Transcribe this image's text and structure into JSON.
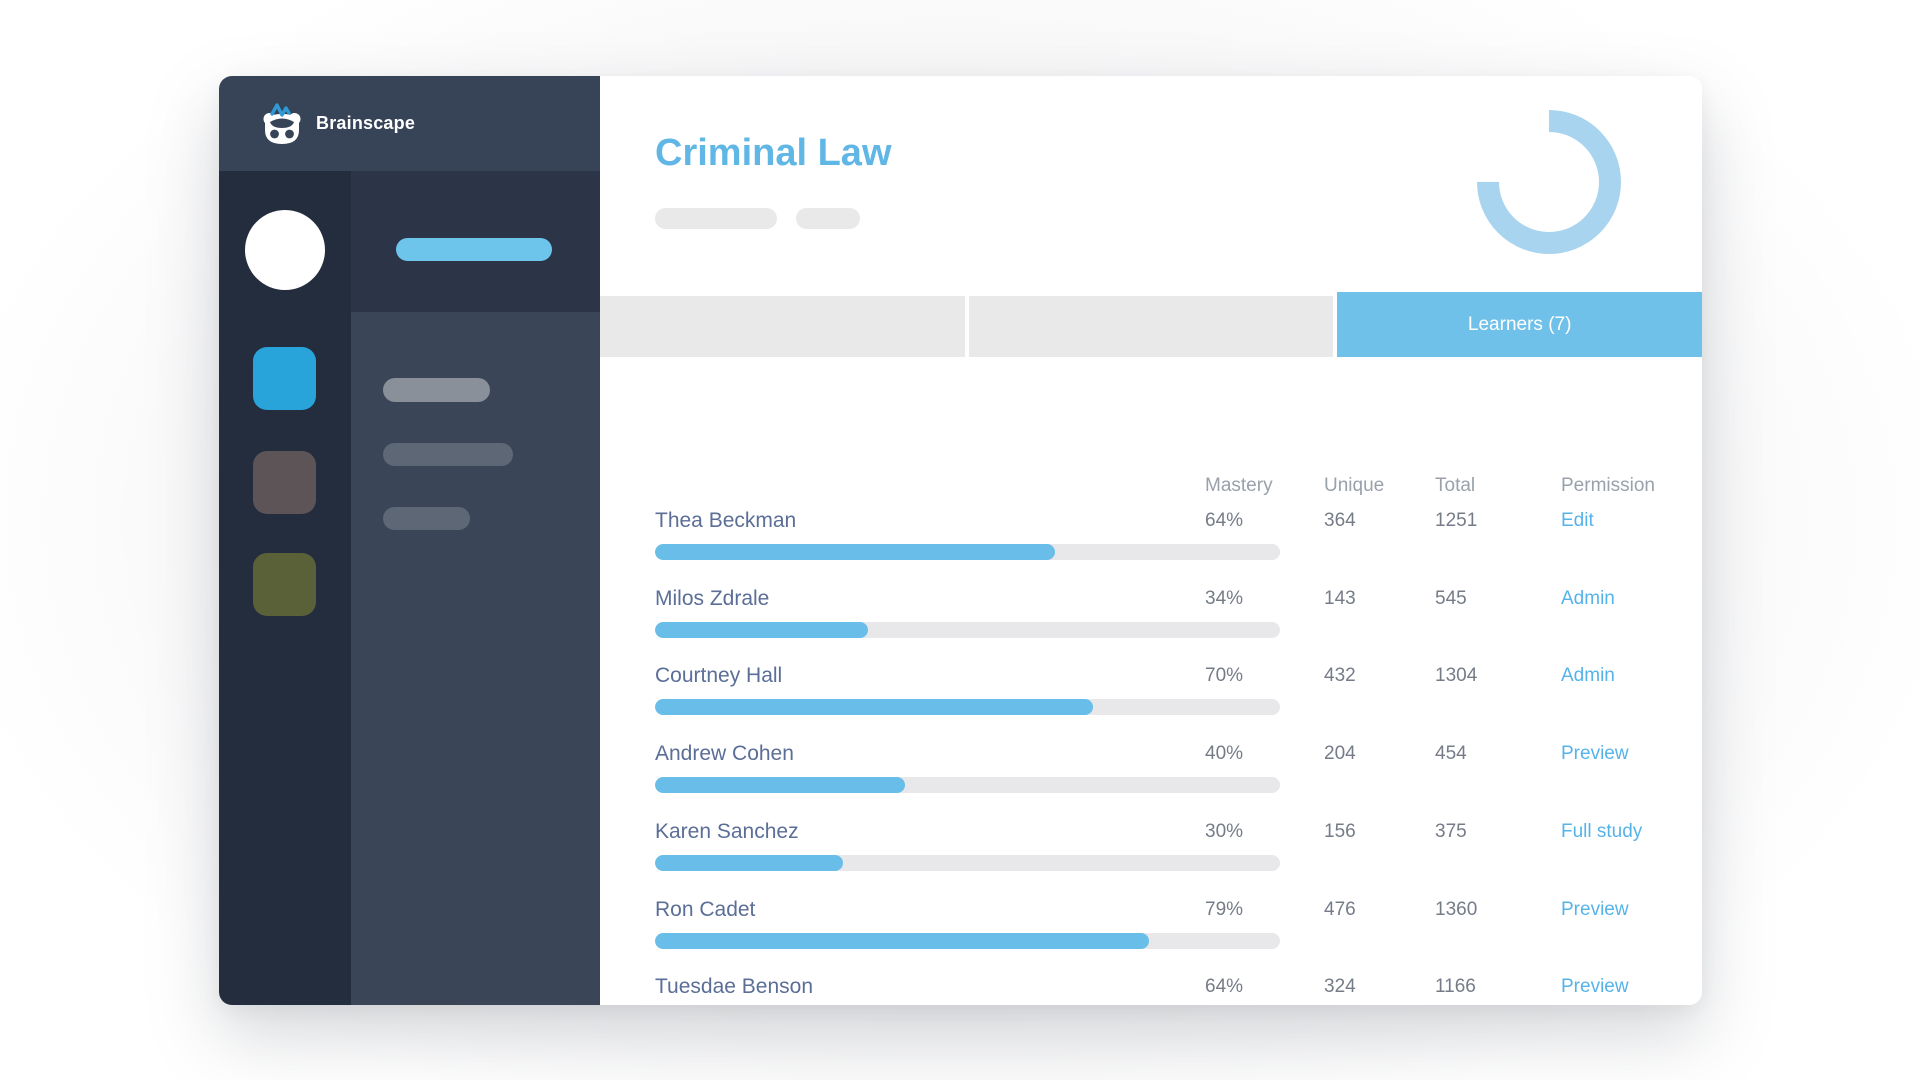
{
  "brand": {
    "name": "Brainscape"
  },
  "colors": {
    "accent_blue": "#6fc1e9",
    "link_blue": "#56b3ea",
    "title_blue": "#60b7e5",
    "progress_blue": "#68bee8",
    "progress_track": "#e8e8ea",
    "donut_blue": "#a9d4ef",
    "sidebar_header": "#374357",
    "sidebar_rail": "#242d3e",
    "nav_square_blue": "#29a4db",
    "nav_square_brown": "#5c5456",
    "nav_square_olive": "#5a6138"
  },
  "page": {
    "title": "Criminal Law"
  },
  "donut": {
    "percent_filled": 75
  },
  "tabs": [
    {
      "label": "",
      "active": false
    },
    {
      "label": "",
      "active": false
    },
    {
      "label": "Learners (7)",
      "active": true
    }
  ],
  "table": {
    "columns": [
      "Mastery",
      "Unique",
      "Total",
      "Permission"
    ],
    "rows": [
      {
        "name": "Thea Beckman",
        "mastery": "64%",
        "mastery_pct": 64,
        "unique": "364",
        "total": "1251",
        "permission": "Edit"
      },
      {
        "name": "Milos Zdrale",
        "mastery": "34%",
        "mastery_pct": 34,
        "unique": "143",
        "total": "545",
        "permission": "Admin"
      },
      {
        "name": "Courtney Hall",
        "mastery": "70%",
        "mastery_pct": 70,
        "unique": "432",
        "total": "1304",
        "permission": "Admin"
      },
      {
        "name": "Andrew Cohen",
        "mastery": "40%",
        "mastery_pct": 40,
        "unique": "204",
        "total": "454",
        "permission": "Preview"
      },
      {
        "name": "Karen Sanchez",
        "mastery": "30%",
        "mastery_pct": 30,
        "unique": "156",
        "total": "375",
        "permission": "Full study"
      },
      {
        "name": "Ron Cadet",
        "mastery": "79%",
        "mastery_pct": 79,
        "unique": "476",
        "total": "1360",
        "permission": "Preview"
      },
      {
        "name": "Tuesdae Benson",
        "mastery": "64%",
        "mastery_pct": 64,
        "unique": "324",
        "total": "1166",
        "permission": "Preview"
      }
    ]
  }
}
